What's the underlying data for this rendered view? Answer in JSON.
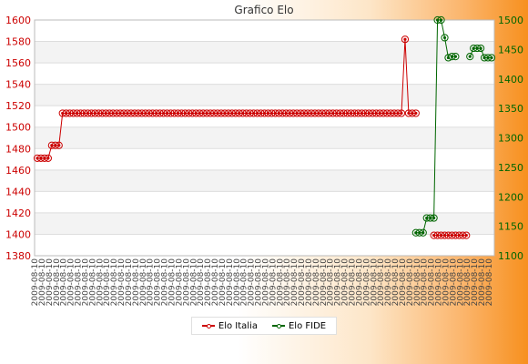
{
  "chart_data": {
    "type": "line",
    "title": "Grafico Elo",
    "grid": true,
    "legend_position": "bottom-center",
    "left_axis": {
      "ylim": [
        1380,
        1600
      ],
      "ticks": [
        1380,
        1400,
        1420,
        1440,
        1460,
        1480,
        1500,
        1520,
        1540,
        1560,
        1580,
        1600
      ],
      "color": "#cc0000"
    },
    "right_axis": {
      "ylim": [
        1100,
        1500
      ],
      "ticks": [
        1100,
        1150,
        1200,
        1250,
        1300,
        1350,
        1400,
        1450,
        1500
      ],
      "color": "#006600"
    },
    "x_tick_labels_note": "dense overlapping date labels (illegible)",
    "x_count": 127,
    "series": [
      {
        "name": "Elo Italia",
        "axis": "left",
        "color": "#cc0000",
        "segments": [
          {
            "start": 0,
            "values": [
              1471,
              1471,
              1471,
              1471,
              1483,
              1483,
              1483,
              1513,
              1513,
              1513,
              1513,
              1513,
              1513,
              1513,
              1513,
              1513,
              1513,
              1513,
              1513,
              1513,
              1513,
              1513,
              1513,
              1513,
              1513,
              1513,
              1513,
              1513,
              1513,
              1513,
              1513,
              1513,
              1513,
              1513,
              1513,
              1513,
              1513,
              1513,
              1513,
              1513,
              1513,
              1513,
              1513,
              1513,
              1513,
              1513,
              1513,
              1513,
              1513,
              1513,
              1513,
              1513,
              1513,
              1513,
              1513,
              1513,
              1513,
              1513,
              1513,
              1513,
              1513,
              1513,
              1513,
              1513,
              1513,
              1513,
              1513,
              1513,
              1513,
              1513,
              1513,
              1513,
              1513,
              1513,
              1513,
              1513,
              1513,
              1513,
              1513,
              1513,
              1513,
              1513,
              1513,
              1513,
              1513,
              1513,
              1513,
              1513,
              1513,
              1513,
              1513,
              1513,
              1513,
              1513,
              1513,
              1513,
              1513,
              1513,
              1513,
              1513,
              1513,
              1513,
              1582,
              1513,
              1513,
              1513
            ]
          },
          {
            "start": 110,
            "values": [
              1399,
              1399,
              1399,
              1399,
              1399,
              1399,
              1399,
              1399,
              1399,
              1399
            ]
          }
        ]
      },
      {
        "name": "Elo FIDE",
        "axis": "right",
        "color": "#006600",
        "segments": [
          {
            "start": 105,
            "values": [
              1139,
              1139,
              1139,
              1164,
              1164,
              1164,
              1500,
              1500,
              1470,
              1436
            ]
          },
          {
            "start": 115,
            "values": [
              1438,
              1438
            ]
          },
          {
            "start": 120,
            "values": [
              1438,
              1452,
              1452,
              1452,
              1436,
              1436,
              1436
            ]
          }
        ]
      }
    ]
  }
}
